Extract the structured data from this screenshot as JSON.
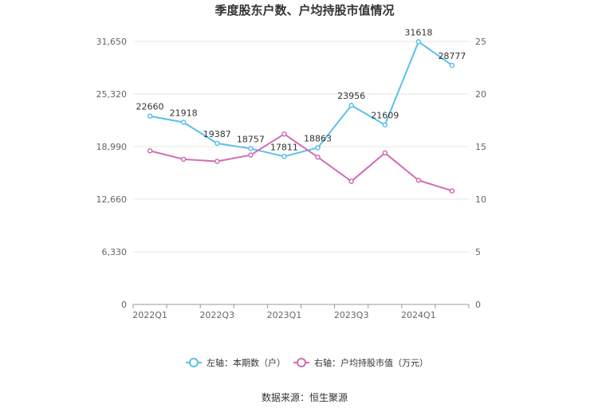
{
  "chart_data": {
    "type": "line",
    "title": "季度股东户数、户均持股市值情况",
    "categories": [
      "2022Q1",
      "2022Q2",
      "2022Q3",
      "2022Q4",
      "2023Q1",
      "2023Q2",
      "2023Q3",
      "2023Q4",
      "2024Q1",
      "2024Q2"
    ],
    "x_tick_labels": [
      "2022Q1",
      "2022Q3",
      "2023Q1",
      "2023Q3",
      "2024Q1"
    ],
    "left_axis": {
      "ylim": [
        0,
        31650
      ],
      "ticks": [
        "0",
        "6,330",
        "12,660",
        "18,990",
        "25,320",
        "31,650"
      ]
    },
    "right_axis": {
      "ylim": [
        0,
        25
      ],
      "ticks": [
        "0",
        "5",
        "10",
        "15",
        "20",
        "25"
      ]
    },
    "series": [
      {
        "name": "左轴：本期数（户）",
        "axis": "left",
        "color": "#5bc0eb",
        "values": [
          22660,
          21918,
          19387,
          18757,
          17811,
          18863,
          23956,
          21609,
          31618,
          28777
        ],
        "labels": [
          "22660",
          "21918",
          "19387",
          "18757",
          "17811",
          "18863",
          "23956",
          "21609",
          "31618",
          "28777"
        ]
      },
      {
        "name": "右轴：户均持股市值（万元）",
        "axis": "right",
        "color": "#d36bb6",
        "values": [
          14.6,
          13.8,
          13.6,
          14.2,
          16.2,
          14.0,
          11.7,
          14.4,
          11.8,
          10.8
        ]
      }
    ],
    "grid": true,
    "legend_position": "bottom"
  },
  "source": "数据来源：恒生聚源"
}
